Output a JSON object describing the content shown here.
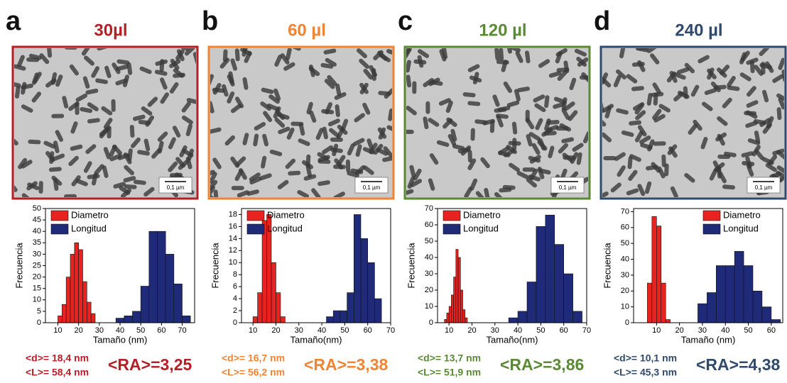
{
  "chart_data": [
    {
      "type": "histogram",
      "panel": "a",
      "title": "30µl",
      "title_color": "#b52026",
      "scale_bar": "0,1 µm",
      "xlabel": "Tamaño (nm)",
      "ylabel": "Frecuencia",
      "legend": "upper left",
      "xlim": [
        4,
        76
      ],
      "xticks": [
        10,
        20,
        30,
        40,
        50,
        60,
        70
      ],
      "ylim": [
        0,
        50
      ],
      "yticks": [
        0,
        5,
        10,
        15,
        20,
        25,
        30,
        35,
        40,
        45,
        50
      ],
      "series": [
        {
          "name": "Diametro",
          "color": "#e8231f",
          "bins": [
            10,
            12,
            14,
            16,
            18,
            20,
            22,
            24,
            26,
            28
          ],
          "values": [
            3,
            8,
            20,
            30,
            35,
            32,
            18,
            9,
            4
          ]
        },
        {
          "name": "Longitud",
          "color": "#1f2a78",
          "bins": [
            38,
            42,
            46,
            50,
            54,
            58,
            62,
            66,
            70,
            74
          ],
          "values": [
            2,
            3,
            5,
            16,
            40,
            40,
            30,
            17,
            3
          ]
        }
      ],
      "annotations": [
        "<d>= 18,4 nm",
        "<L>= 58,4 nm",
        "<RA>=3,25"
      ]
    },
    {
      "type": "histogram",
      "panel": "b",
      "title": "60 µl",
      "title_color": "#ef8434",
      "scale_bar": "0,1 µm",
      "xlabel": "Tamaño(nm)",
      "ylabel": "Frecuencia",
      "legend": "upper left",
      "xlim": [
        5,
        70
      ],
      "xticks": [
        10,
        20,
        30,
        40,
        50,
        60,
        70
      ],
      "ylim": [
        0,
        19
      ],
      "yticks": [
        0,
        2,
        4,
        6,
        8,
        10,
        12,
        14,
        16,
        18
      ],
      "series": [
        {
          "name": "Diametro",
          "color": "#e8231f",
          "bins": [
            10,
            12,
            14,
            16,
            18,
            20,
            22,
            24
          ],
          "values": [
            1,
            5,
            17,
            18,
            10,
            5,
            1
          ]
        },
        {
          "name": "Longitud",
          "color": "#1f2a78",
          "bins": [
            42,
            45,
            48,
            51,
            54,
            57,
            60,
            63,
            66
          ],
          "values": [
            1,
            2,
            2,
            5,
            18,
            14,
            10,
            4
          ]
        }
      ],
      "annotations": [
        "<d>= 16,7 nm",
        "<L>= 56,2 nm",
        "<RA>=3,38"
      ]
    },
    {
      "type": "histogram",
      "panel": "c",
      "title": "120 µl",
      "title_color": "#5b8a35",
      "scale_bar": "0,1 µm",
      "xlabel": "Tamaño(nm)",
      "ylabel": "Frecuencia",
      "legend": "upper left",
      "xlim": [
        5,
        70
      ],
      "xticks": [
        10,
        20,
        30,
        40,
        50,
        60,
        70
      ],
      "ylim": [
        0,
        70
      ],
      "yticks": [
        0,
        10,
        20,
        30,
        40,
        50,
        60,
        70
      ],
      "series": [
        {
          "name": "Diametro",
          "color": "#e8231f",
          "bins": [
            8,
            9,
            10,
            11,
            12,
            13,
            14,
            15,
            16,
            17,
            18
          ],
          "values": [
            2,
            6,
            10,
            17,
            28,
            45,
            40,
            20,
            8,
            3
          ]
        },
        {
          "name": "Longitud",
          "color": "#1f2a78",
          "bins": [
            36,
            40,
            44,
            48,
            52,
            56,
            60,
            64,
            68
          ],
          "values": [
            3,
            7,
            25,
            59,
            66,
            48,
            30,
            7
          ]
        }
      ],
      "annotations": [
        "<d>= 13,7 nm",
        "<L>= 51,9 nm",
        "<RA>=3,86"
      ]
    },
    {
      "type": "histogram",
      "panel": "d",
      "title": "240 µl",
      "title_color": "#2f4a6c",
      "scale_bar": "0,1 µm",
      "xlabel": "Tamaño (nm)",
      "ylabel": "Frecuencia",
      "legend": "upper right",
      "xlim": [
        0,
        65
      ],
      "xticks": [
        10,
        20,
        30,
        40,
        50,
        60
      ],
      "ylim": [
        0,
        72
      ],
      "yticks": [
        0,
        10,
        20,
        30,
        40,
        50,
        60,
        70
      ],
      "series": [
        {
          "name": "Diametro",
          "color": "#e8231f",
          "bins": [
            6,
            8,
            10,
            12,
            14,
            16
          ],
          "values": [
            25,
            67,
            61,
            25,
            2
          ]
        },
        {
          "name": "Longitud",
          "color": "#1f2a78",
          "bins": [
            28,
            32,
            36,
            40,
            44,
            48,
            52,
            56,
            60,
            64
          ],
          "values": [
            12,
            19,
            36,
            36,
            45,
            36,
            20,
            10,
            2
          ]
        }
      ],
      "annotations": [
        "<d>= 10,1 nm",
        "<L>= 45,3 nm",
        "<RA>=4,38"
      ]
    }
  ]
}
